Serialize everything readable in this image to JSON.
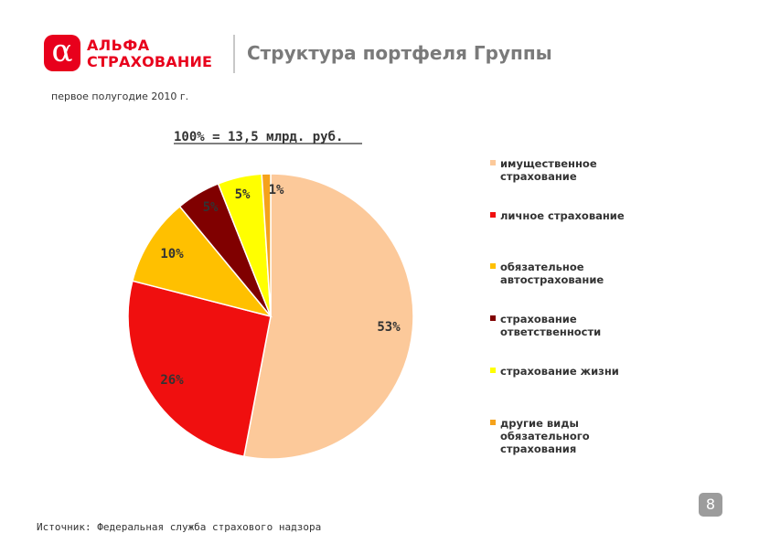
{
  "header": {
    "logo_mark": "α",
    "logo_line1": "АЛЬФА",
    "logo_line2": "СТРАХОВАНИЕ",
    "title": "Структура портфеля Группы"
  },
  "subtitle": "первое полугодие 2010 г.",
  "source": "Источник: Федеральная служба страхового надзора",
  "page_number": "8",
  "chart_data": {
    "type": "pie",
    "title": "100% = 13,5 млрд. руб.",
    "legend_position": "right",
    "slices": [
      {
        "label": "имущественное страхование",
        "value": 53,
        "display": "53%",
        "color": "#fcc99a"
      },
      {
        "label": "личное страхование",
        "value": 26,
        "display": "26%",
        "color": "#f00f0f"
      },
      {
        "label": "обязательное автострахование",
        "value": 10,
        "display": "10%",
        "color": "#ffc000"
      },
      {
        "label": "страхование ответственности",
        "value": 5,
        "display": "5%",
        "color": "#800000"
      },
      {
        "label": "страхование жизни",
        "value": 5,
        "display": "5%",
        "color": "#ffff00"
      },
      {
        "label": "другие виды обязательного страхования",
        "value": 1,
        "display": "1%",
        "color": "#f5a21b"
      }
    ]
  }
}
